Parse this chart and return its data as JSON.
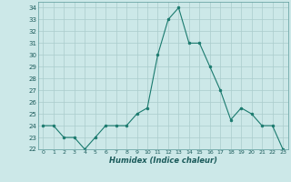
{
  "x": [
    0,
    1,
    2,
    3,
    4,
    5,
    6,
    7,
    8,
    9,
    10,
    11,
    12,
    13,
    14,
    15,
    16,
    17,
    18,
    19,
    20,
    21,
    22,
    23
  ],
  "y": [
    24,
    24,
    23,
    23,
    22,
    23,
    24,
    24,
    24,
    25,
    25.5,
    30,
    33,
    34,
    31,
    31,
    29,
    27,
    24.5,
    25.5,
    25,
    24,
    24,
    22
  ],
  "line_color": "#1a7a6e",
  "marker_color": "#1a7a6e",
  "bg_color": "#cce8e8",
  "grid_color": "#aacccc",
  "xlabel": "Humidex (Indice chaleur)",
  "ylim": [
    22,
    34.5
  ],
  "yticks": [
    22,
    23,
    24,
    25,
    26,
    27,
    28,
    29,
    30,
    31,
    32,
    33,
    34
  ],
  "xlim": [
    -0.5,
    23.5
  ],
  "xticks": [
    0,
    1,
    2,
    3,
    4,
    5,
    6,
    7,
    8,
    9,
    10,
    11,
    12,
    13,
    14,
    15,
    16,
    17,
    18,
    19,
    20,
    21,
    22,
    23
  ]
}
